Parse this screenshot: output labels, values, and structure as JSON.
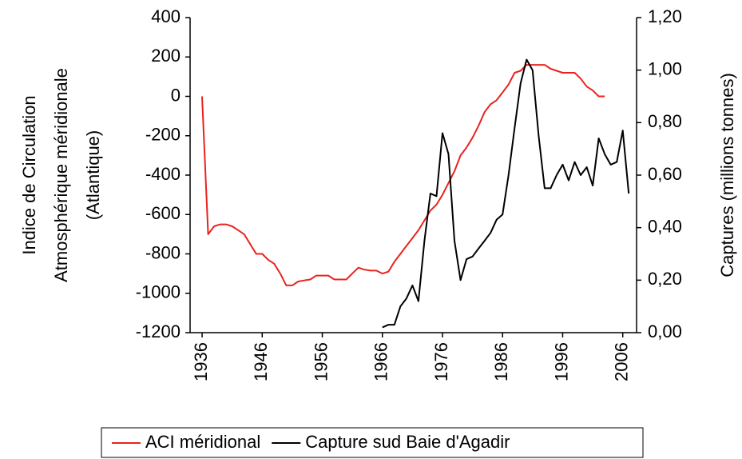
{
  "chart_data": {
    "type": "line",
    "ylabel": [
      "Indice de Circulation",
      "Atmosphérique méridionale",
      "(Atlantique)"
    ],
    "y2label": "Captures (millions tonnes)",
    "xlim": [
      1934,
      2008.3
    ],
    "xticks": [
      1936,
      1946,
      1956,
      1966,
      1976,
      1986,
      1996,
      2006
    ],
    "ylim": [
      -1200,
      400
    ],
    "yticks": [
      -1200,
      -1000,
      -800,
      -600,
      -400,
      -200,
      0,
      200,
      400
    ],
    "y2lim": [
      0,
      1.2
    ],
    "y2ticks": [
      {
        "value": 0,
        "label": "0,00"
      },
      {
        "value": 0.2,
        "label": "0,20"
      },
      {
        "value": 0.4,
        "label": "0,40"
      },
      {
        "value": 0.6,
        "label": "0,60"
      },
      {
        "value": 0.8,
        "label": "0,80"
      },
      {
        "value": 1.0,
        "label": "1,00"
      },
      {
        "value": 1.2,
        "label": "1,20"
      }
    ],
    "series": [
      {
        "name": "ACI méridional",
        "color": "#e8231f",
        "x": [
          1936,
          1937,
          1938,
          1939,
          1940,
          1941,
          1942,
          1943,
          1944,
          1945,
          1946,
          1947,
          1948,
          1949,
          1950,
          1951,
          1952,
          1953,
          1954,
          1955,
          1956,
          1957,
          1958,
          1959,
          1960,
          1961,
          1962,
          1963,
          1964,
          1965,
          1966,
          1967,
          1968,
          1969,
          1970,
          1971,
          1972,
          1973,
          1974,
          1975,
          1976,
          1977,
          1978,
          1979,
          1980,
          1981,
          1982,
          1983,
          1984,
          1985,
          1986,
          1987,
          1988,
          1989,
          1990,
          1991,
          1992,
          1993,
          1994,
          1995,
          1996,
          1997,
          1998,
          1999,
          2000,
          2001,
          2002,
          2003
        ],
        "values": [
          0,
          -700,
          -660,
          -650,
          -650,
          -660,
          -680,
          -700,
          -750,
          -800,
          -800,
          -830,
          -850,
          -900,
          -960,
          -960,
          -940,
          -935,
          -930,
          -910,
          -910,
          -910,
          -930,
          -930,
          -930,
          -900,
          -870,
          -880,
          -885,
          -885,
          -900,
          -890,
          -840,
          -800,
          -760,
          -720,
          -680,
          -630,
          -580,
          -550,
          -500,
          -440,
          -380,
          -300,
          -260,
          -210,
          -150,
          -80,
          -40,
          -20,
          20,
          60,
          120,
          130,
          160,
          160,
          160,
          160,
          140,
          130,
          120,
          120,
          120,
          90,
          50,
          30,
          0,
          0
        ]
      },
      {
        "name": "Capture sud Baie d'Agadir",
        "color": "#000000",
        "axis": "y2",
        "x": [
          1966,
          1967,
          1968,
          1969,
          1970,
          1971,
          1972,
          1973,
          1974,
          1975,
          1976,
          1977,
          1978,
          1979,
          1980,
          1981,
          1982,
          1983,
          1984,
          1985,
          1986,
          1987,
          1988,
          1989,
          1990,
          1991,
          1992,
          1993,
          1994,
          1995,
          1996,
          1997,
          1998,
          1999,
          2000,
          2001,
          2002,
          2003,
          2004,
          2005,
          2006,
          2007
        ],
        "values": [
          0.02,
          0.03,
          0.03,
          0.1,
          0.13,
          0.18,
          0.12,
          0.35,
          0.53,
          0.52,
          0.76,
          0.68,
          0.35,
          0.2,
          0.28,
          0.29,
          0.32,
          0.35,
          0.38,
          0.43,
          0.45,
          0.6,
          0.78,
          0.95,
          1.04,
          1.0,
          0.75,
          0.55,
          0.55,
          0.6,
          0.64,
          0.58,
          0.65,
          0.6,
          0.63,
          0.56,
          0.74,
          0.68,
          0.64,
          0.65,
          0.77,
          0.53
        ]
      }
    ]
  }
}
